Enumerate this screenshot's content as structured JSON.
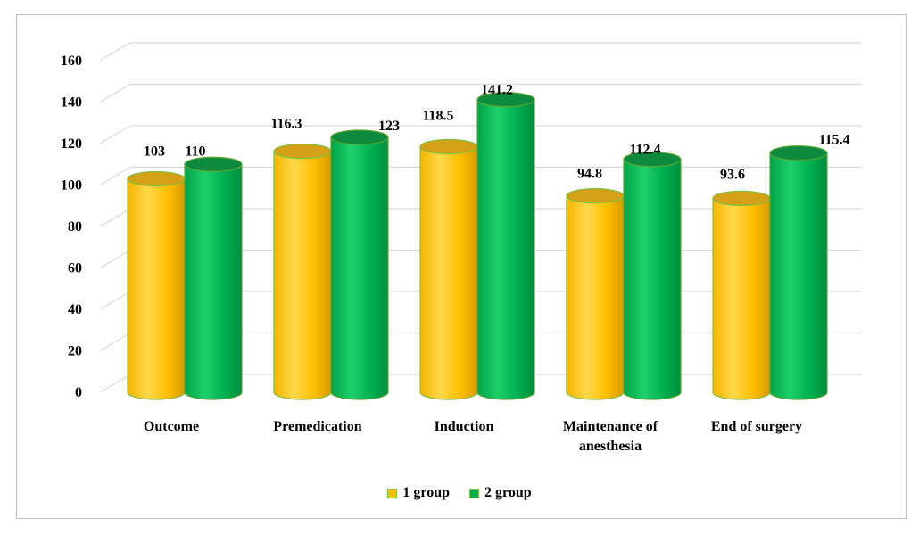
{
  "chart_data": {
    "type": "bar",
    "categories": [
      "Outcome",
      "Premedication",
      "Induction",
      "Maintenance of anesthesia",
      "End of surgery"
    ],
    "category_lines": [
      [
        "Outcome"
      ],
      [
        "Premedication"
      ],
      [
        "Induction"
      ],
      [
        "Maintenance of",
        "anesthesia"
      ],
      [
        "End of surgery"
      ]
    ],
    "series": [
      {
        "name": "1 group",
        "values": [
          103,
          116.3,
          118.5,
          94.8,
          93.6
        ],
        "labels": [
          "103",
          "116.3",
          "118.5",
          "94.8",
          "93.6"
        ],
        "color": "#FFC000"
      },
      {
        "name": "2 group",
        "values": [
          110,
          123,
          141.2,
          112.4,
          115.4
        ],
        "labels": [
          "110",
          "123",
          "141.2",
          "112.4",
          "115.4"
        ],
        "color": "#00B050"
      }
    ],
    "yticks": [
      "0",
      "20",
      "40",
      "60",
      "80",
      "100",
      "120",
      "140",
      "160"
    ],
    "ylim": [
      0,
      160
    ],
    "grid": true,
    "style": "3d-cylinder",
    "legend_position": "bottom"
  },
  "legend": {
    "item1": "1 group",
    "item2": "2 group"
  }
}
